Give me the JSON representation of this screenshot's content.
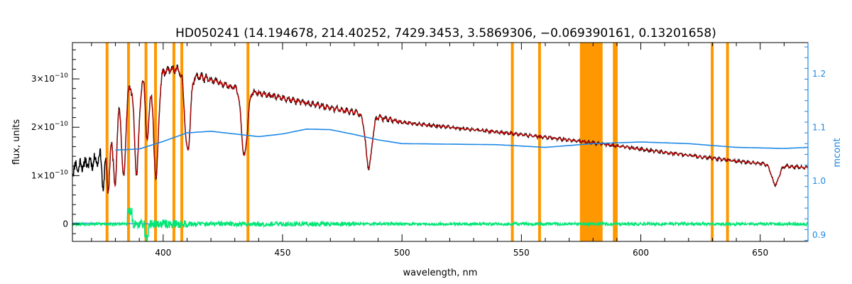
{
  "chart_data": {
    "type": "line",
    "title": "HD050241    (14.194678, 214.40252, 7429.3453, 3.5869306, −0.069390161, 0.13201658)",
    "xlabel": "wavelength, nm",
    "ylabel": "flux, units",
    "y2label": "mcont",
    "xlim": [
      362,
      670
    ],
    "ylim": [
      -0.36,
      3.75
    ],
    "y2lim": [
      0.888,
      1.258
    ],
    "x_ticks": [
      {
        "value": 400,
        "label": "400"
      },
      {
        "value": 450,
        "label": "450"
      },
      {
        "value": 500,
        "label": "500"
      },
      {
        "value": 550,
        "label": "550"
      },
      {
        "value": 600,
        "label": "600"
      },
      {
        "value": 650,
        "label": "650"
      }
    ],
    "y_ticks": [
      {
        "value": 0,
        "base": "0",
        "exp": ""
      },
      {
        "value": 1,
        "base": "1×10",
        "exp": "−10"
      },
      {
        "value": 2,
        "base": "2×10",
        "exp": "−10"
      },
      {
        "value": 3,
        "base": "3×10",
        "exp": "−10"
      }
    ],
    "y2_ticks": [
      {
        "value": 0.9,
        "label": "0.9"
      },
      {
        "value": 1.0,
        "label": "1.0"
      },
      {
        "value": 1.1,
        "label": "1.1"
      },
      {
        "value": 1.2,
        "label": "1.2"
      }
    ],
    "colors": {
      "observed": "#000000",
      "model": "#d50000",
      "residual": "#00e676",
      "continuum": "#1e88e5",
      "mask": "#ff9800"
    },
    "mask_lines": [
      376.5,
      385.5,
      392.8,
      396.8,
      404.5,
      407.8,
      435.5,
      546.2,
      557.6,
      588.9,
      589.7,
      629.9,
      636.3
    ],
    "mask_band": [
      574.5,
      584.0
    ],
    "absorption_lines": [
      {
        "center": 656.3,
        "depth": 0.4,
        "width": 1.5
      },
      {
        "center": 486.1,
        "depth": 1.08,
        "width": 1.3
      },
      {
        "center": 434.0,
        "depth": 1.38,
        "width": 1.2
      },
      {
        "center": 410.2,
        "depth": 1.6,
        "width": 1.1
      },
      {
        "center": 397.0,
        "depth": 2.1,
        "width": 1.0
      },
      {
        "center": 393.4,
        "depth": 1.3,
        "width": 0.7
      },
      {
        "center": 388.9,
        "depth": 1.85,
        "width": 0.9
      },
      {
        "center": 383.5,
        "depth": 1.7,
        "width": 0.8
      },
      {
        "center": 379.8,
        "depth": 1.5,
        "width": 0.7
      },
      {
        "center": 377.1,
        "depth": 1.2,
        "width": 0.6
      },
      {
        "center": 375.0,
        "depth": 0.9,
        "width": 0.5
      }
    ],
    "flux_continuum": {
      "x": [
        362,
        365,
        370,
        373,
        376,
        380,
        385,
        390,
        395,
        400,
        405,
        410,
        420,
        430,
        440,
        450,
        470,
        490,
        500,
        520,
        550,
        580,
        610,
        640,
        660,
        670
      ],
      "y": [
        1.15,
        1.2,
        1.28,
        1.35,
        1.7,
        2.3,
        2.8,
        2.95,
        3.05,
        3.15,
        3.2,
        3.1,
        2.98,
        2.82,
        2.7,
        2.6,
        2.4,
        2.22,
        2.1,
        2.0,
        1.85,
        1.68,
        1.48,
        1.3,
        1.2,
        1.16
      ]
    },
    "mcont": {
      "x": [
        380,
        390,
        400,
        410,
        420,
        430,
        440,
        450,
        460,
        470,
        480,
        490,
        500,
        520,
        540,
        560,
        580,
        600,
        620,
        640,
        660,
        670
      ],
      "y": [
        1.058,
        1.06,
        1.074,
        1.09,
        1.093,
        1.088,
        1.083,
        1.088,
        1.097,
        1.096,
        1.087,
        1.077,
        1.07,
        1.069,
        1.068,
        1.063,
        1.07,
        1.073,
        1.07,
        1.063,
        1.061,
        1.063
      ]
    }
  }
}
